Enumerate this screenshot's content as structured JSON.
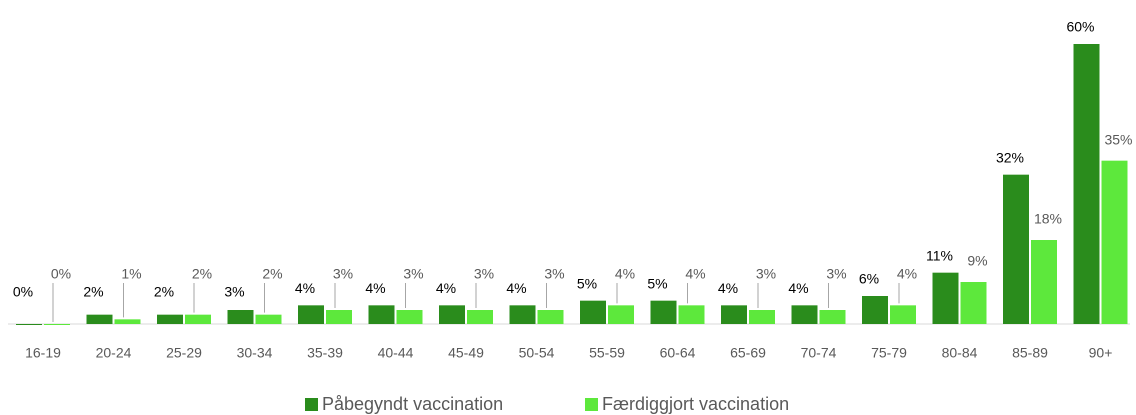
{
  "chart_data": {
    "type": "bar",
    "categories": [
      "16-19",
      "20-24",
      "25-29",
      "30-34",
      "35-39",
      "40-44",
      "45-49",
      "50-54",
      "55-59",
      "60-64",
      "65-69",
      "70-74",
      "75-79",
      "80-84",
      "85-89",
      "90+"
    ],
    "series": [
      {
        "name": "Påbegyndt vaccination",
        "color": "#2a8c1c",
        "values": [
          0,
          2,
          2,
          3,
          4,
          4,
          4,
          4,
          5,
          5,
          4,
          4,
          6,
          11,
          32,
          60
        ],
        "value_labels": [
          "0%",
          "2%",
          "2%",
          "3%",
          "4%",
          "4%",
          "4%",
          "4%",
          "5%",
          "5%",
          "4%",
          "4%",
          "6%",
          "11%",
          "32%",
          "60%"
        ]
      },
      {
        "name": "Færdiggjort vaccination",
        "color": "#5de83c",
        "values": [
          0,
          1,
          2,
          2,
          3,
          3,
          3,
          3,
          4,
          4,
          3,
          3,
          4,
          9,
          18,
          35
        ],
        "value_labels": [
          "0%",
          "1%",
          "2%",
          "2%",
          "3%",
          "3%",
          "3%",
          "3%",
          "4%",
          "4%",
          "3%",
          "3%",
          "4%",
          "9%",
          "18%",
          "35%"
        ]
      }
    ],
    "legend": "bottom"
  }
}
